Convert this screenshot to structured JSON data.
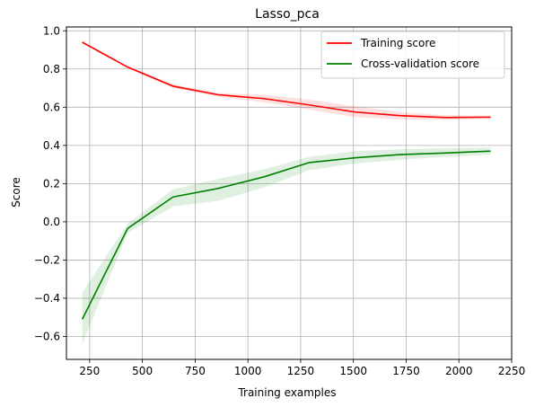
{
  "chart_data": {
    "type": "line",
    "title": "Lasso_pca",
    "xlabel": "Training examples",
    "ylabel": "Score",
    "xlim": [
      140,
      2250
    ],
    "ylim": [
      -0.72,
      1.02
    ],
    "xticks": [
      250,
      500,
      750,
      1000,
      1250,
      1500,
      1750,
      2000,
      2250
    ],
    "yticks": [
      -0.6,
      -0.4,
      -0.2,
      0.0,
      0.2,
      0.4,
      0.6,
      0.8,
      1.0
    ],
    "xtick_labels": [
      "250",
      "500",
      "750",
      "1000",
      "1250",
      "1500",
      "1750",
      "2000",
      "2250"
    ],
    "ytick_labels": [
      "−0.6",
      "−0.4",
      "−0.2",
      "0.0",
      "0.2",
      "0.4",
      "0.6",
      "0.8",
      "1.0"
    ],
    "grid": true,
    "legend_position": "top-right",
    "x": [
      215,
      430,
      645,
      860,
      1075,
      1290,
      1505,
      1720,
      1935,
      2150
    ],
    "series": [
      {
        "name": "Training score",
        "color": "#ff0000",
        "values": [
          0.94,
          0.81,
          0.71,
          0.665,
          0.645,
          0.612,
          0.575,
          0.556,
          0.546,
          0.548
        ],
        "band_upper": [
          0.945,
          0.815,
          0.72,
          0.675,
          0.665,
          0.64,
          0.605,
          0.575,
          0.558,
          0.556
        ],
        "band_lower": [
          0.935,
          0.805,
          0.7,
          0.655,
          0.625,
          0.588,
          0.548,
          0.536,
          0.534,
          0.54
        ]
      },
      {
        "name": "Cross-validation score",
        "color": "#008000",
        "values": [
          -0.51,
          -0.035,
          0.13,
          0.175,
          0.235,
          0.31,
          0.335,
          0.352,
          0.36,
          0.37
        ],
        "band_upper": [
          -0.37,
          -0.01,
          0.17,
          0.225,
          0.275,
          0.34,
          0.37,
          0.38,
          0.385,
          0.388
        ],
        "band_lower": [
          -0.64,
          -0.06,
          0.08,
          0.11,
          0.18,
          0.27,
          0.305,
          0.325,
          0.34,
          0.352
        ]
      }
    ]
  }
}
